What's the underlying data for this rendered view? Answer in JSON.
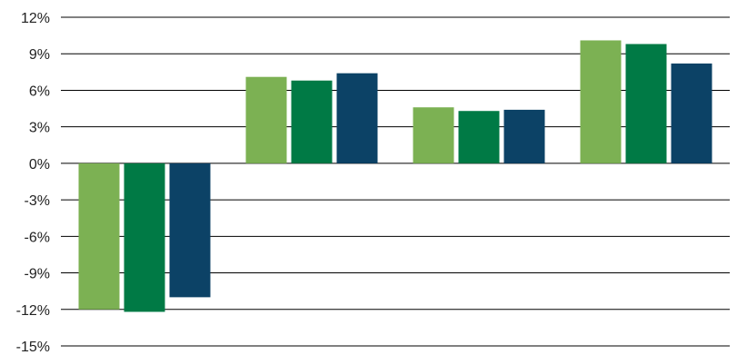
{
  "chart_data": {
    "type": "bar",
    "categories": [
      "",
      "",
      "",
      ""
    ],
    "series": [
      {
        "values": [
          -12.0,
          7.1,
          4.6,
          10.1
        ],
        "color": "#7cb153"
      },
      {
        "values": [
          -12.2,
          6.8,
          4.3,
          9.8
        ],
        "color": "#007a45"
      },
      {
        "values": [
          -11.0,
          7.4,
          4.4,
          8.2
        ],
        "color": "#0c4266"
      }
    ],
    "title": "",
    "xlabel": "",
    "ylabel": "",
    "ylim": [
      -15,
      12
    ],
    "yticks": [
      12,
      9,
      6,
      3,
      0,
      -3,
      -6,
      -9,
      -12,
      -15
    ],
    "ytick_labels": [
      "12%",
      "9%",
      "6%",
      "3%",
      "0%",
      "-3%",
      "-6%",
      "-9%",
      "-12%",
      "-15%"
    ],
    "grid": true,
    "legend": "none"
  }
}
